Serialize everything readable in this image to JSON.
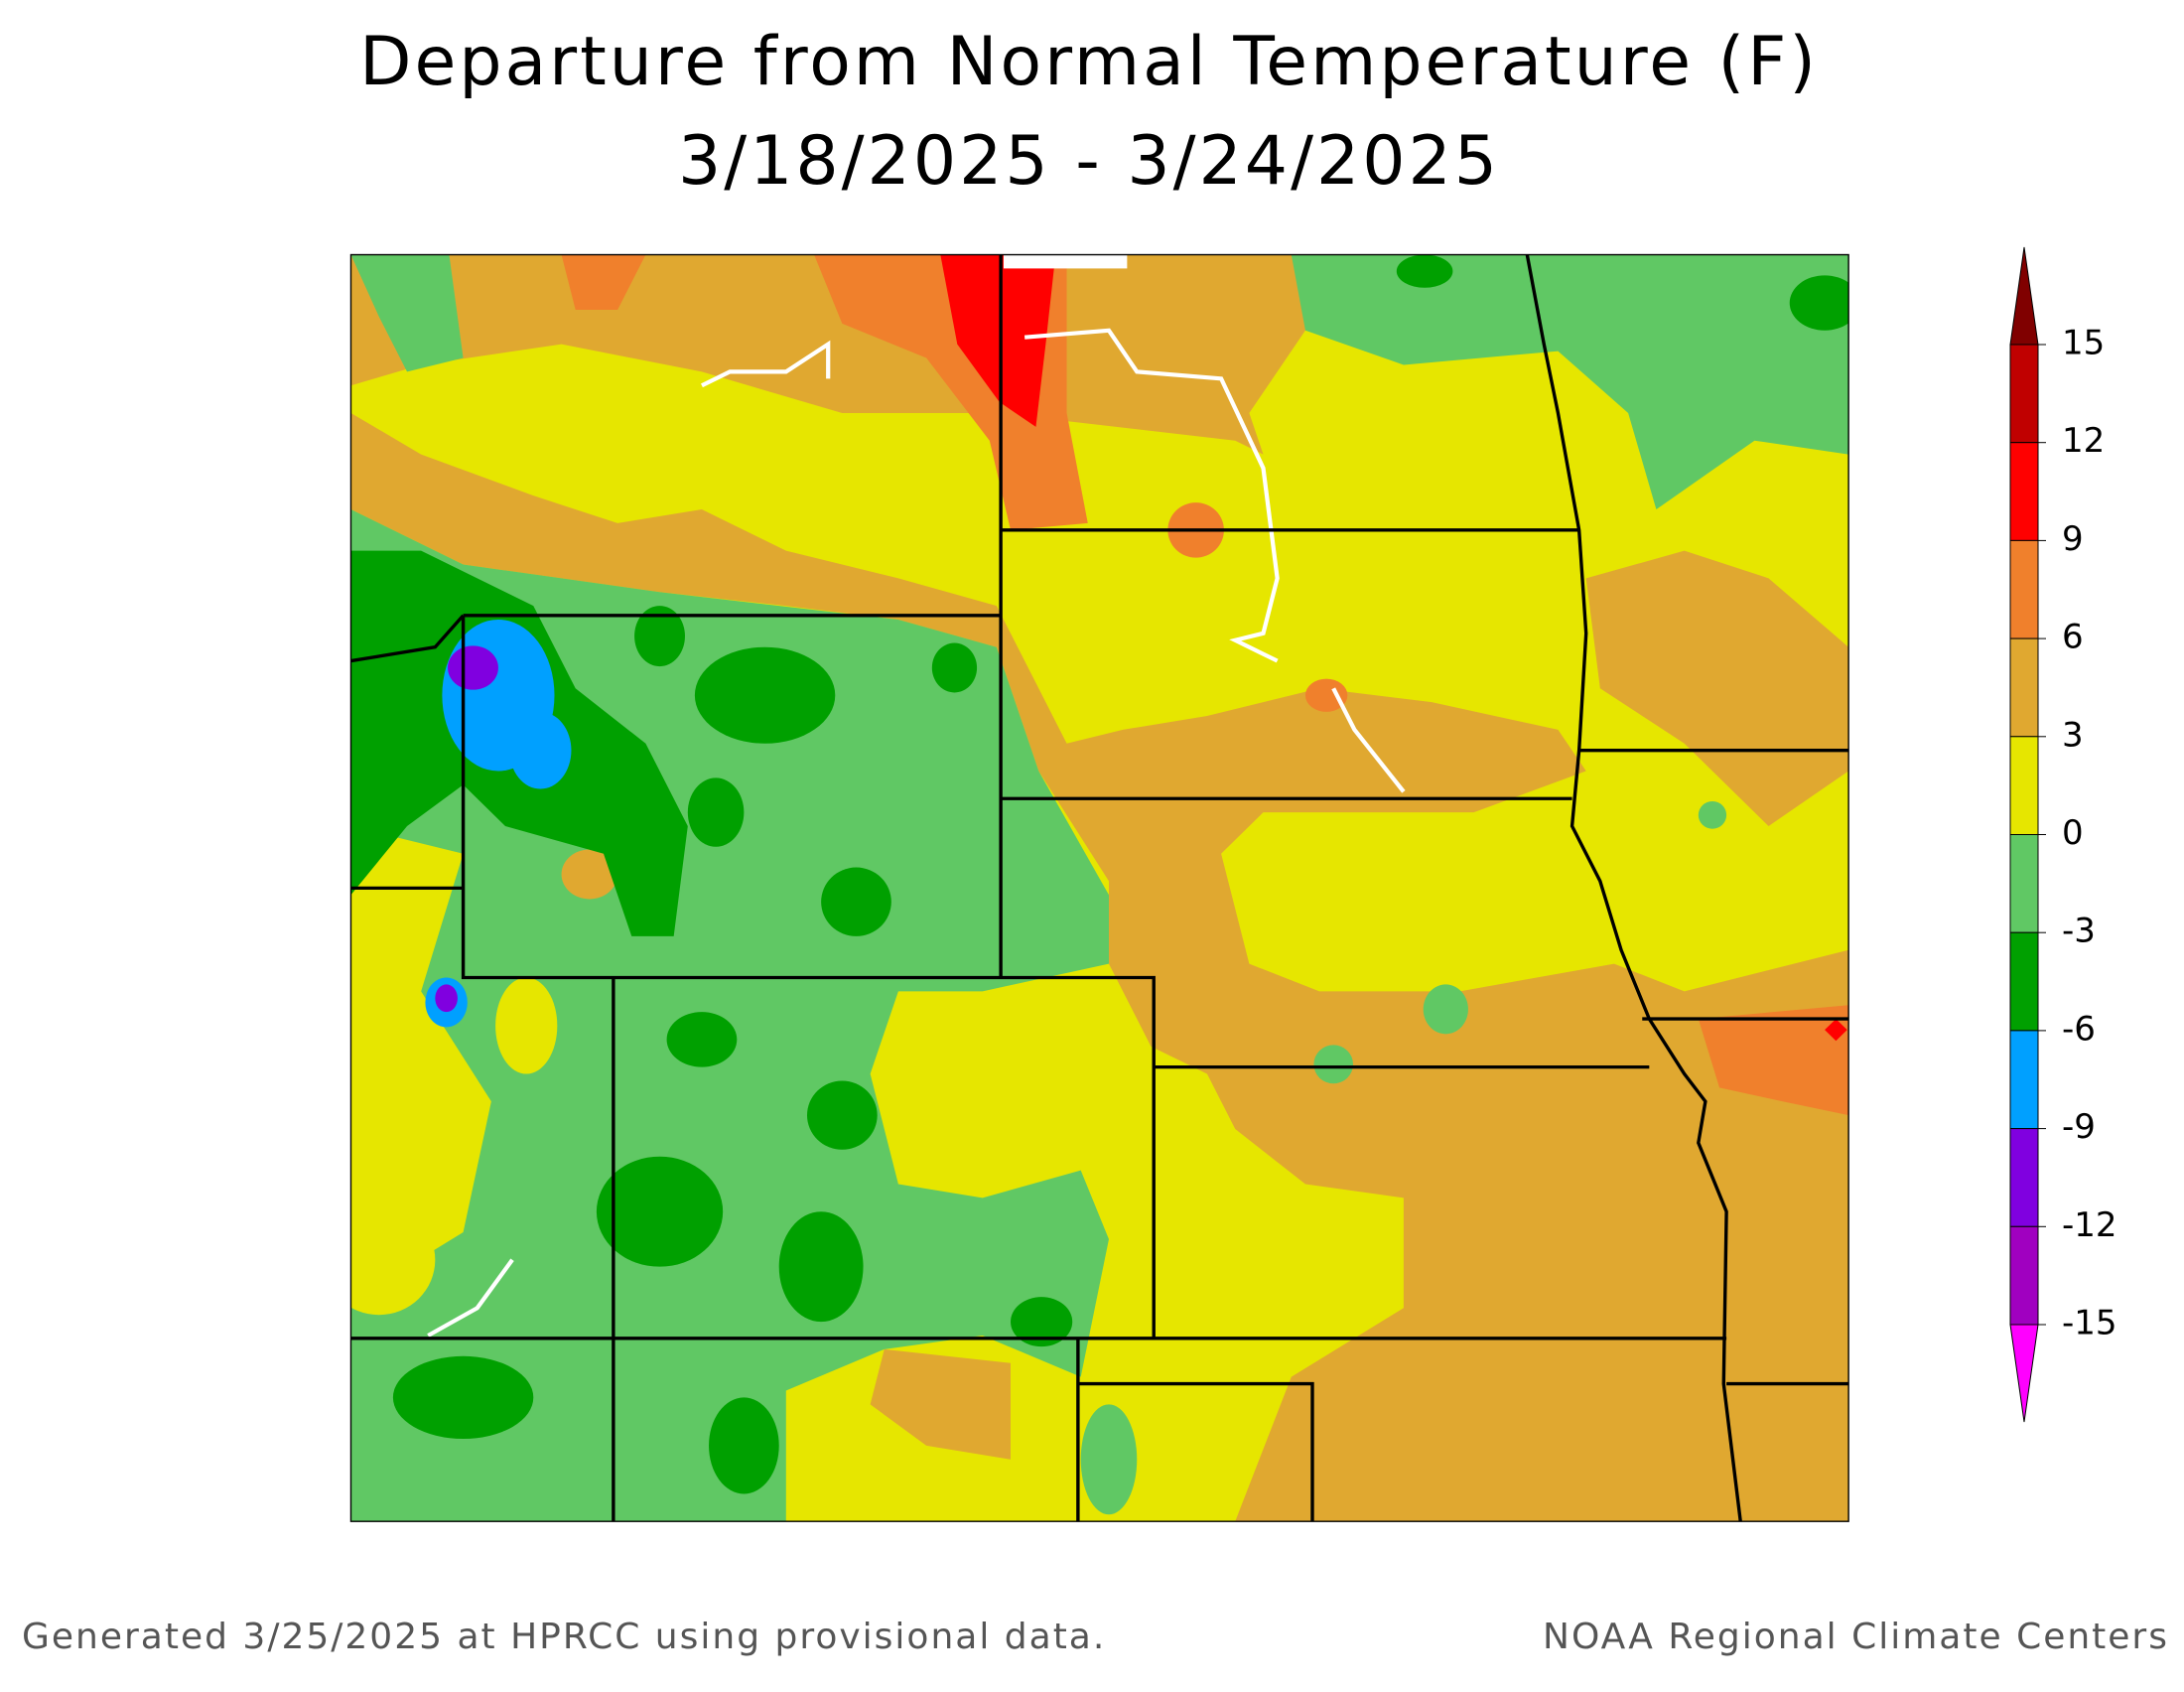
{
  "title": "Departure from Normal Temperature (F)",
  "subtitle": "3/18/2025 - 3/24/2025",
  "footer_left": "Generated 3/25/2025 at HPRCC using provisional data.",
  "footer_right": "NOAA Regional Climate Centers",
  "colorbar": {
    "ticks": [
      15,
      12,
      9,
      6,
      3,
      0,
      -3,
      -6,
      -9,
      -12,
      -15
    ],
    "colors": [
      "#c00000",
      "#ff0000",
      "#f0802c",
      "#e0a830",
      "#e6e600",
      "#60c864",
      "#00a000",
      "#00a0ff",
      "#8000e0",
      "#a000c0"
    ],
    "over_color": "#800000",
    "under_color": "#ff00ff"
  }
}
